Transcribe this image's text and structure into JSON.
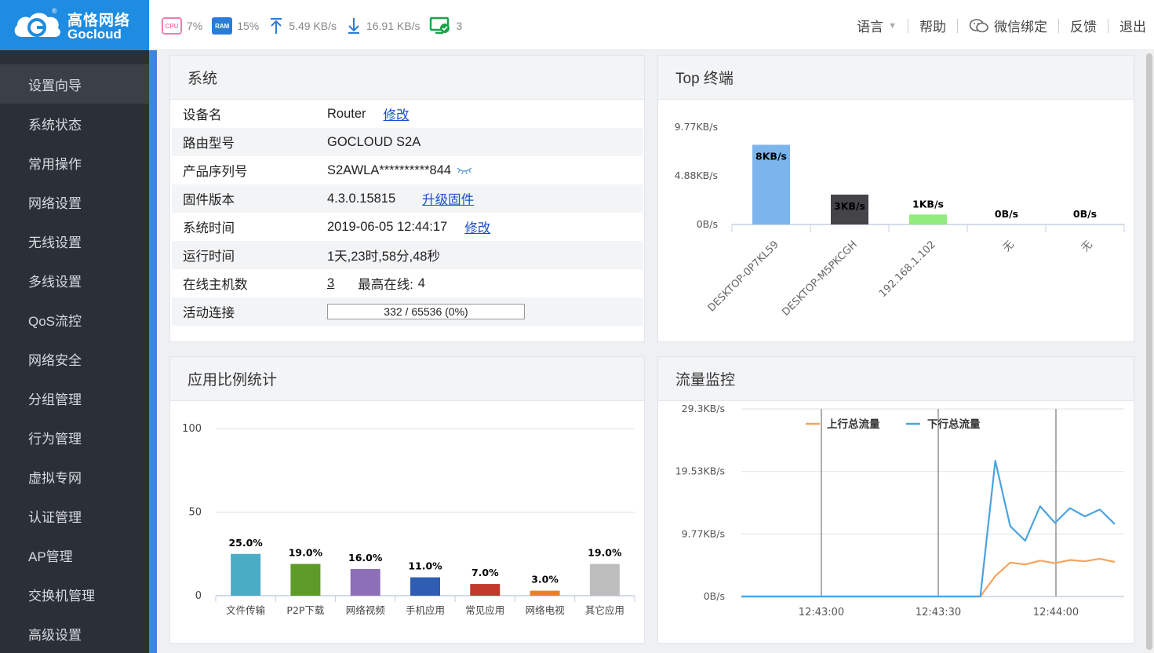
{
  "brand": {
    "name_cn": "高恪网络",
    "name_en": "Gocloud"
  },
  "topbar": {
    "cpu_label": "CPU",
    "cpu": "7%",
    "ram_label": "RAM",
    "ram": "15%",
    "upload": "5.49 KB/s",
    "download": "16.91 KB/s",
    "devices": "3",
    "menu": {
      "language": "语言",
      "help": "帮助",
      "wechat": "微信绑定",
      "feedback": "反馈",
      "logout": "退出"
    }
  },
  "sidebar": {
    "items": [
      {
        "label": "设置向导"
      },
      {
        "label": "系统状态"
      },
      {
        "label": "常用操作"
      },
      {
        "label": "网络设置"
      },
      {
        "label": "无线设置"
      },
      {
        "label": "多线设置"
      },
      {
        "label": "QoS流控"
      },
      {
        "label": "网络安全"
      },
      {
        "label": "分组管理"
      },
      {
        "label": "行为管理"
      },
      {
        "label": "虚拟专网"
      },
      {
        "label": "认证管理"
      },
      {
        "label": "AP管理"
      },
      {
        "label": "交换机管理"
      },
      {
        "label": "高级设置"
      }
    ]
  },
  "system": {
    "title": "系统",
    "device_name_label": "设备名",
    "device_name": "Router",
    "device_name_action": "修改",
    "model_label": "路由型号",
    "model": "GOCLOUD S2A",
    "serial_label": "产品序列号",
    "serial": "S2AWLA**********844",
    "firmware_label": "固件版本",
    "firmware": "4.3.0.15815",
    "firmware_action": "升级固件",
    "time_label": "系统时间",
    "time": "2019-06-05 12:44:17",
    "time_action": "修改",
    "uptime_label": "运行时间",
    "uptime": "1天,23时,58分,48秒",
    "hosts_label": "在线主机数",
    "hosts": "3",
    "max_online_label": "最高在线:",
    "max_online": "4",
    "connections_label": "活动连接",
    "connections": "332 / 65536 (0%)",
    "connections_fraction": 0.005
  },
  "top_terminals": {
    "title": "Top 终端"
  },
  "app_stats": {
    "title": "应用比例统计"
  },
  "traffic": {
    "title": "流量监控"
  },
  "chart_data": [
    {
      "type": "bar",
      "title": "Top 终端",
      "categories": [
        "DESKTOP-0P7KL59",
        "DESKTOP-M5PKCGH",
        "192.168.1.102",
        "无",
        "无"
      ],
      "values": [
        8,
        3,
        1,
        0,
        0
      ],
      "data_labels": [
        "8KB/s",
        "3KB/s",
        "1KB/s",
        "0B/s",
        "0B/s"
      ],
      "colors": [
        "#7cb5ec",
        "#434348",
        "#90ed7d",
        "#f7a35c",
        "#8085e9"
      ],
      "yticks": [
        "0B/s",
        "4.88KB/s",
        "9.77KB/s"
      ],
      "ylim": [
        0,
        9.77
      ]
    },
    {
      "type": "bar",
      "title": "应用比例统计",
      "categories": [
        "文件传输",
        "P2P下载",
        "网络视频",
        "手机应用",
        "常见应用",
        "网络电视",
        "其它应用"
      ],
      "values": [
        25.0,
        19.0,
        16.0,
        11.0,
        7.0,
        3.0,
        19.0
      ],
      "data_labels": [
        "25.0%",
        "19.0%",
        "16.0%",
        "11.0%",
        "7.0%",
        "3.0%",
        "19.0%"
      ],
      "colors": [
        "#4bacc6",
        "#5e9a28",
        "#8c6fb8",
        "#2f5db3",
        "#c0392b",
        "#e8802a",
        "#bdbdbd"
      ],
      "yticks": [
        "0",
        "50",
        "100"
      ],
      "ylim": [
        0,
        100
      ]
    },
    {
      "type": "line",
      "title": "流量监控",
      "x_ticks": [
        "12:43:00",
        "12:43:30",
        "12:44:00"
      ],
      "yticks": [
        "0B/s",
        "9.77KB/s",
        "19.53KB/s",
        "29.3KB/s"
      ],
      "ylim": [
        0,
        29.3
      ],
      "series": [
        {
          "name": "上行总流量",
          "color": "#f7a35c",
          "x": [
            0,
            1,
            2,
            3,
            4,
            5,
            6,
            7,
            8,
            9,
            10,
            11,
            12,
            13,
            14,
            15,
            16,
            17,
            18,
            19,
            20,
            21,
            22,
            23,
            24,
            25
          ],
          "y": [
            0,
            0,
            0,
            0,
            0,
            0,
            0,
            0,
            0,
            0,
            0,
            0,
            0,
            0,
            0,
            0,
            0,
            3.2,
            5.3,
            5.0,
            5.6,
            5.2,
            5.7,
            5.5,
            5.9,
            5.4
          ]
        },
        {
          "name": "下行总流量",
          "color": "#4aa3df",
          "x": [
            0,
            1,
            2,
            3,
            4,
            5,
            6,
            7,
            8,
            9,
            10,
            11,
            12,
            13,
            14,
            15,
            16,
            17,
            18,
            19,
            20,
            21,
            22,
            23,
            24,
            25
          ],
          "y": [
            0,
            0,
            0,
            0,
            0,
            0,
            0,
            0,
            0,
            0,
            0,
            0,
            0,
            0,
            0,
            0,
            0,
            21.2,
            11.0,
            8.7,
            14.1,
            11.5,
            13.8,
            12.5,
            13.6,
            11.3
          ]
        }
      ]
    }
  ]
}
